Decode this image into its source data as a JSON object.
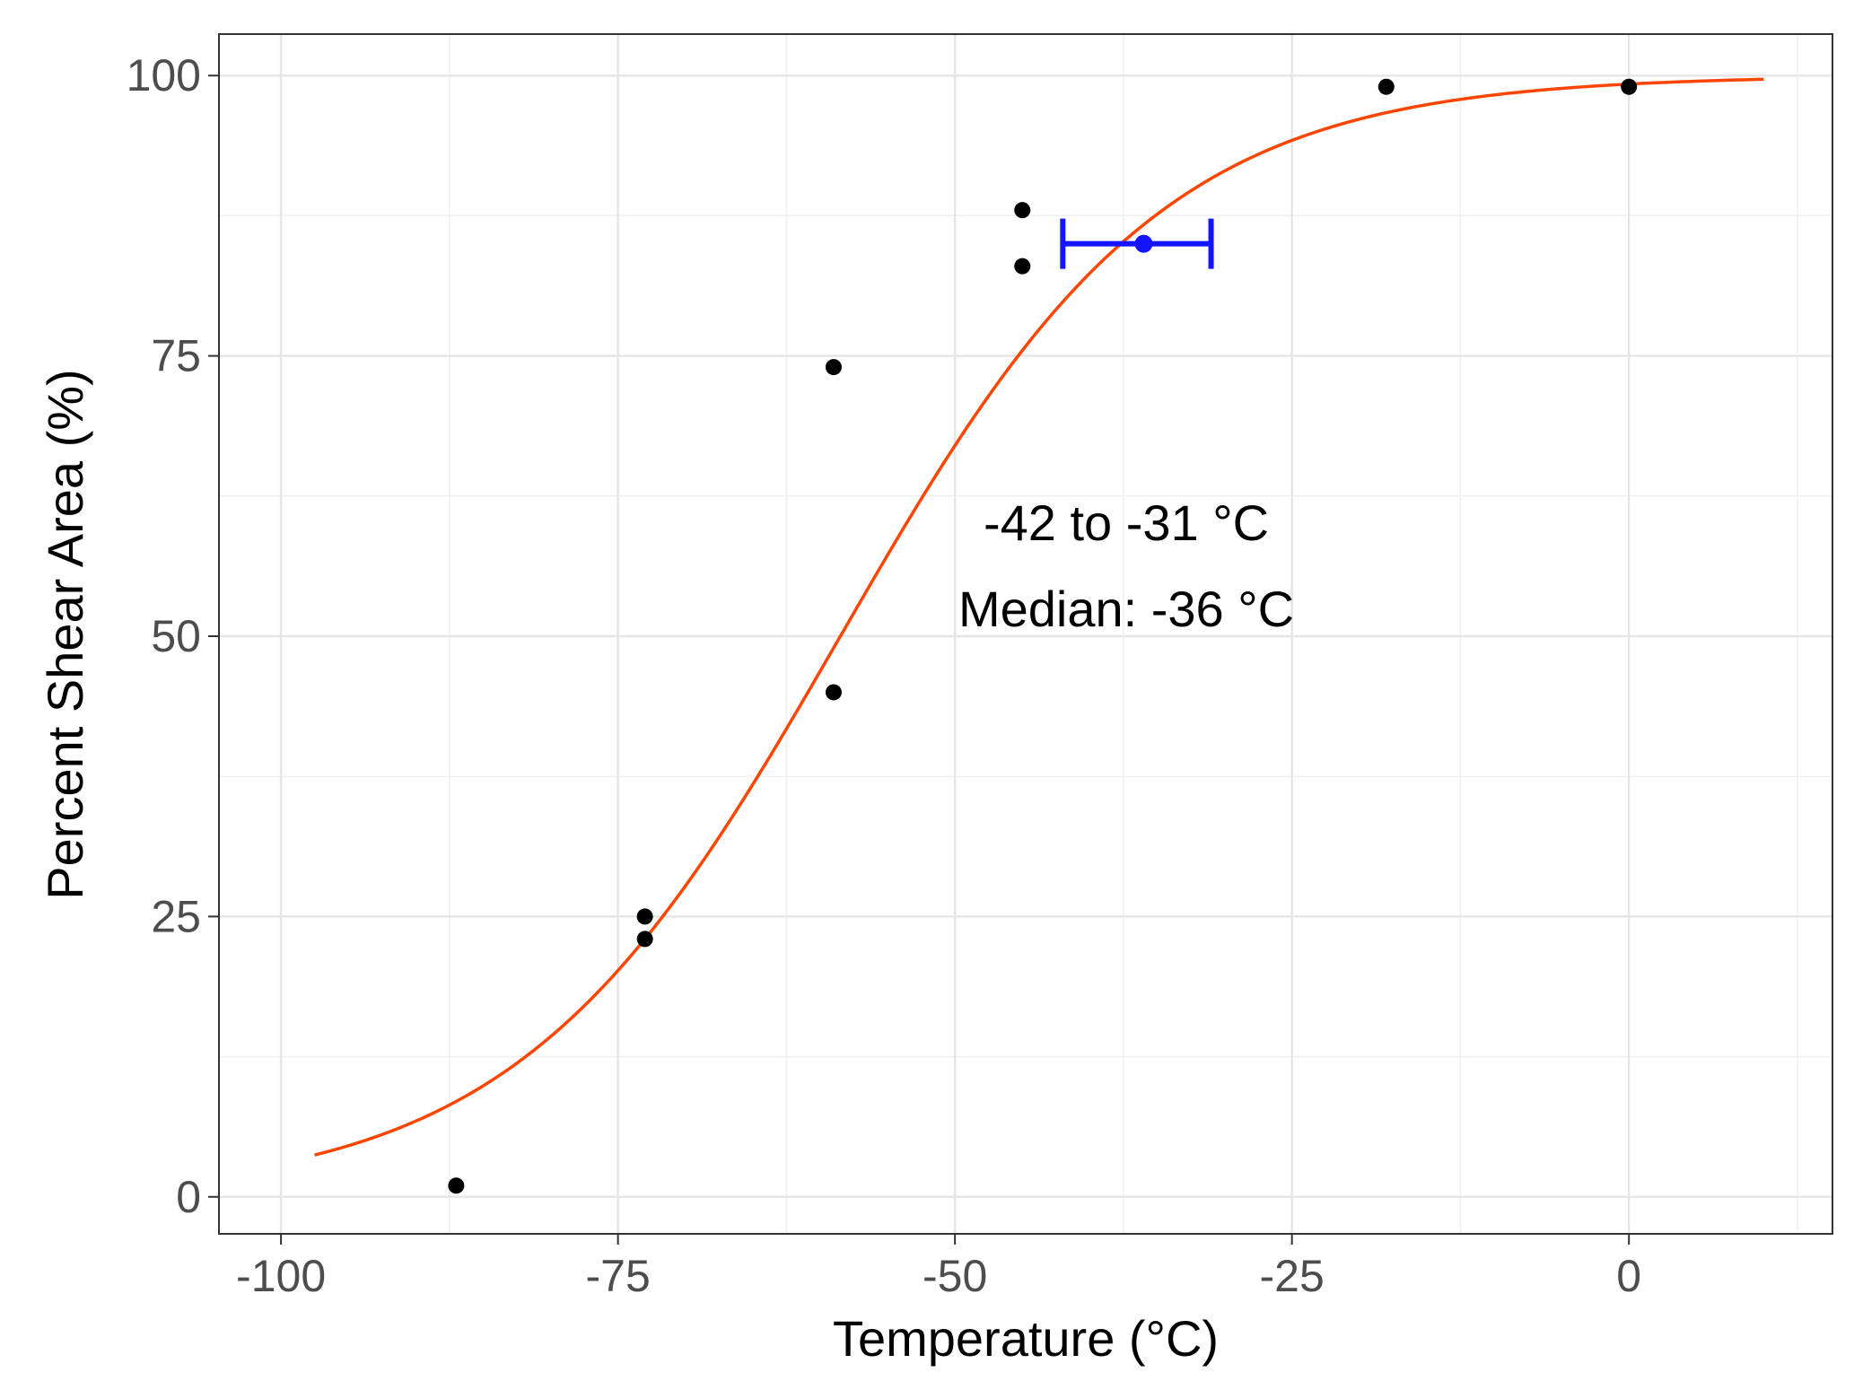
{
  "chart_data": {
    "type": "scatter",
    "title": "",
    "xlabel": "Temperature (°C)",
    "ylabel": "Percent Shear Area (%)",
    "xlim": [
      -104.6,
      15.1
    ],
    "ylim": [
      -3.3,
      103.7
    ],
    "x_ticks": [
      -100,
      -75,
      -50,
      -25,
      0
    ],
    "x_tick_labels": [
      "-100",
      "-75",
      "-50",
      "-25",
      "0"
    ],
    "y_ticks": [
      0,
      25,
      50,
      75,
      100
    ],
    "y_tick_labels": [
      "0",
      "25",
      "50",
      "75",
      "100"
    ],
    "grid": true,
    "points": {
      "name": "observed",
      "color": "#000000",
      "x": [
        -87,
        -73,
        -73,
        -59,
        -59,
        -45,
        -45,
        -18,
        0
      ],
      "y": [
        1,
        23,
        25,
        45,
        74,
        83,
        88,
        99,
        99
      ]
    },
    "curve": {
      "name": "fit",
      "type": "logistic",
      "color": "#ff4500",
      "x_range": [
        -97.5,
        10
      ],
      "midpoint": -58.5,
      "scale": 12
    },
    "interval": {
      "color": "#1414ff",
      "x_low": -42,
      "x_high": -31,
      "x_median": -36,
      "y": 85
    },
    "annotations": [
      "-42 to -31 °C",
      "Median: -36 °C"
    ]
  }
}
